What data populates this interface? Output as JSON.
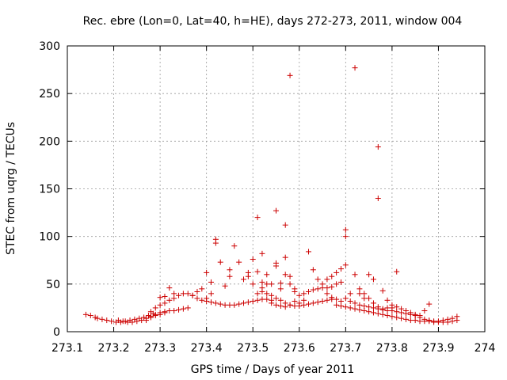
{
  "chart_data": {
    "type": "scatter",
    "title": "Rec. ebre (Lon=0, Lat=40, h=HE), days 272-273, 2011, window 004",
    "xlabel": "GPS time / Days of year 2011",
    "ylabel": "STEC from uqrg / TECUs",
    "xlim": [
      273.1,
      274
    ],
    "ylim": [
      0,
      300
    ],
    "x_ticks": [
      273.1,
      273.2,
      273.3,
      273.4,
      273.5,
      273.6,
      273.7,
      273.8,
      273.9,
      274
    ],
    "x_tick_labels": [
      "273.1",
      "273.2",
      "273.3",
      "273.4",
      "273.5",
      "273.6",
      "273.7",
      "273.8",
      "273.9",
      "274"
    ],
    "y_ticks": [
      0,
      50,
      100,
      150,
      200,
      250,
      300
    ],
    "y_tick_labels": [
      "0",
      "50",
      "100",
      "150",
      "200",
      "250",
      "300"
    ],
    "grid": true,
    "marker": "+",
    "marker_color": "#cc0000",
    "series": [
      {
        "points": [
          [
            273.14,
            18
          ],
          [
            273.15,
            17
          ],
          [
            273.16,
            15
          ],
          [
            273.165,
            14
          ],
          [
            273.175,
            13
          ],
          [
            273.185,
            12
          ],
          [
            273.195,
            11
          ],
          [
            273.205,
            10
          ],
          [
            273.215,
            10
          ],
          [
            273.225,
            11
          ],
          [
            273.235,
            12
          ],
          [
            273.245,
            13
          ],
          [
            273.255,
            14
          ],
          [
            273.265,
            15
          ],
          [
            273.275,
            17
          ],
          [
            273.285,
            19
          ],
          [
            273.21,
            12
          ],
          [
            273.22,
            11
          ],
          [
            273.23,
            10
          ],
          [
            273.24,
            10
          ],
          [
            273.25,
            11
          ],
          [
            273.26,
            12
          ],
          [
            273.27,
            14
          ],
          [
            273.28,
            16
          ],
          [
            273.29,
            18
          ],
          [
            273.3,
            20
          ],
          [
            273.31,
            21
          ],
          [
            273.32,
            22
          ],
          [
            273.33,
            22
          ],
          [
            273.34,
            23
          ],
          [
            273.35,
            24
          ],
          [
            273.36,
            25
          ],
          [
            273.27,
            12
          ],
          [
            273.28,
            15
          ],
          [
            273.29,
            17
          ],
          [
            273.3,
            18
          ],
          [
            273.31,
            20
          ],
          [
            273.28,
            21
          ],
          [
            273.29,
            25
          ],
          [
            273.3,
            28
          ],
          [
            273.31,
            30
          ],
          [
            273.32,
            33
          ],
          [
            273.33,
            35
          ],
          [
            273.34,
            38
          ],
          [
            273.35,
            40
          ],
          [
            273.36,
            40
          ],
          [
            273.37,
            38
          ],
          [
            273.38,
            35
          ],
          [
            273.39,
            33
          ],
          [
            273.4,
            32
          ],
          [
            273.41,
            31
          ],
          [
            273.42,
            30
          ],
          [
            273.43,
            29
          ],
          [
            273.44,
            28
          ],
          [
            273.45,
            28
          ],
          [
            273.46,
            28
          ],
          [
            273.47,
            29
          ],
          [
            273.48,
            30
          ],
          [
            273.49,
            31
          ],
          [
            273.5,
            32
          ],
          [
            273.51,
            33
          ],
          [
            273.52,
            34
          ],
          [
            273.53,
            34
          ],
          [
            273.54,
            33
          ],
          [
            273.3,
            36
          ],
          [
            273.31,
            37
          ],
          [
            273.32,
            46
          ],
          [
            273.33,
            40
          ],
          [
            273.37,
            38
          ],
          [
            273.38,
            42
          ],
          [
            273.39,
            45
          ],
          [
            273.4,
            35
          ],
          [
            273.41,
            40
          ],
          [
            273.4,
            62
          ],
          [
            273.41,
            52
          ],
          [
            273.42,
            97
          ],
          [
            273.42,
            93
          ],
          [
            273.43,
            73
          ],
          [
            273.44,
            48
          ],
          [
            273.45,
            58
          ],
          [
            273.45,
            65
          ],
          [
            273.46,
            90
          ],
          [
            273.47,
            73
          ],
          [
            273.48,
            55
          ],
          [
            273.49,
            58
          ],
          [
            273.49,
            62
          ],
          [
            273.5,
            76
          ],
          [
            273.5,
            50
          ],
          [
            273.51,
            40
          ],
          [
            273.51,
            120
          ],
          [
            273.51,
            63
          ],
          [
            273.52,
            82
          ],
          [
            273.52,
            52
          ],
          [
            273.53,
            60
          ],
          [
            273.53,
            50
          ],
          [
            273.54,
            50
          ],
          [
            273.55,
            127
          ],
          [
            273.55,
            72
          ],
          [
            273.55,
            69
          ],
          [
            273.56,
            51
          ],
          [
            273.56,
            45
          ],
          [
            273.57,
            112
          ],
          [
            273.57,
            78
          ],
          [
            273.57,
            60
          ],
          [
            273.58,
            269
          ],
          [
            273.58,
            58
          ],
          [
            273.58,
            50
          ],
          [
            273.59,
            45
          ],
          [
            273.59,
            42
          ],
          [
            273.52,
            46
          ],
          [
            273.53,
            40
          ],
          [
            273.54,
            38
          ],
          [
            273.55,
            35
          ],
          [
            273.56,
            33
          ],
          [
            273.57,
            30
          ],
          [
            273.58,
            28
          ],
          [
            273.59,
            27
          ],
          [
            273.6,
            27
          ],
          [
            273.61,
            28
          ],
          [
            273.62,
            29
          ],
          [
            273.63,
            30
          ],
          [
            273.64,
            31
          ],
          [
            273.65,
            32
          ],
          [
            273.66,
            33
          ],
          [
            273.67,
            34
          ],
          [
            273.52,
            42
          ],
          [
            273.54,
            30
          ],
          [
            273.55,
            28
          ],
          [
            273.56,
            27
          ],
          [
            273.57,
            26
          ],
          [
            273.58,
            28
          ],
          [
            273.59,
            32
          ],
          [
            273.6,
            38
          ],
          [
            273.61,
            40
          ],
          [
            273.62,
            42
          ],
          [
            273.63,
            44
          ],
          [
            273.64,
            45
          ],
          [
            273.65,
            50
          ],
          [
            273.66,
            55
          ],
          [
            273.67,
            58
          ],
          [
            273.68,
            62
          ],
          [
            273.69,
            66
          ],
          [
            273.7,
            70
          ],
          [
            273.6,
            30
          ],
          [
            273.61,
            33
          ],
          [
            273.62,
            84
          ],
          [
            273.63,
            65
          ],
          [
            273.64,
            55
          ],
          [
            273.65,
            46
          ],
          [
            273.66,
            40
          ],
          [
            273.67,
            36
          ],
          [
            273.68,
            34
          ],
          [
            273.69,
            32
          ],
          [
            273.66,
            46
          ],
          [
            273.67,
            47
          ],
          [
            273.68,
            50
          ],
          [
            273.69,
            52
          ],
          [
            273.7,
            100
          ],
          [
            273.7,
            107
          ],
          [
            273.71,
            40
          ],
          [
            273.72,
            277
          ],
          [
            273.72,
            60
          ],
          [
            273.73,
            45
          ],
          [
            273.73,
            40
          ],
          [
            273.74,
            35
          ],
          [
            273.75,
            60
          ],
          [
            273.76,
            55
          ],
          [
            273.77,
            194
          ],
          [
            273.77,
            140
          ],
          [
            273.78,
            43
          ],
          [
            273.79,
            33
          ],
          [
            273.8,
            25
          ],
          [
            273.81,
            63
          ],
          [
            273.68,
            28
          ],
          [
            273.69,
            27
          ],
          [
            273.7,
            26
          ],
          [
            273.71,
            25
          ],
          [
            273.72,
            24
          ],
          [
            273.73,
            23
          ],
          [
            273.74,
            22
          ],
          [
            273.75,
            21
          ],
          [
            273.76,
            20
          ],
          [
            273.77,
            19
          ],
          [
            273.78,
            18
          ],
          [
            273.79,
            17
          ],
          [
            273.8,
            16
          ],
          [
            273.81,
            15
          ],
          [
            273.82,
            14
          ],
          [
            273.83,
            13
          ],
          [
            273.84,
            12
          ],
          [
            273.85,
            12
          ],
          [
            273.86,
            11
          ],
          [
            273.87,
            11
          ],
          [
            273.88,
            11
          ],
          [
            273.89,
            10
          ],
          [
            273.9,
            10
          ],
          [
            273.91,
            10
          ],
          [
            273.92,
            10
          ],
          [
            273.93,
            11
          ],
          [
            273.94,
            12
          ],
          [
            273.7,
            35
          ],
          [
            273.71,
            32
          ],
          [
            273.72,
            30
          ],
          [
            273.73,
            28
          ],
          [
            273.74,
            27
          ],
          [
            273.75,
            26
          ],
          [
            273.76,
            25
          ],
          [
            273.77,
            24
          ],
          [
            273.78,
            23
          ],
          [
            273.79,
            22
          ],
          [
            273.8,
            22
          ],
          [
            273.81,
            21
          ],
          [
            273.82,
            20
          ],
          [
            273.83,
            19
          ],
          [
            273.84,
            18
          ],
          [
            273.85,
            18
          ],
          [
            273.86,
            17
          ],
          [
            273.87,
            22
          ],
          [
            273.88,
            29
          ],
          [
            273.74,
            40
          ],
          [
            273.75,
            35
          ],
          [
            273.76,
            30
          ],
          [
            273.77,
            26
          ],
          [
            273.78,
            24
          ],
          [
            273.79,
            25
          ],
          [
            273.8,
            28
          ],
          [
            273.81,
            26
          ],
          [
            273.82,
            24
          ],
          [
            273.83,
            22
          ],
          [
            273.84,
            20
          ],
          [
            273.85,
            17
          ],
          [
            273.86,
            15
          ],
          [
            273.87,
            13
          ],
          [
            273.88,
            12
          ],
          [
            273.89,
            11
          ],
          [
            273.9,
            11
          ],
          [
            273.91,
            12
          ],
          [
            273.92,
            13
          ],
          [
            273.93,
            14
          ],
          [
            273.94,
            16
          ]
        ]
      }
    ]
  }
}
